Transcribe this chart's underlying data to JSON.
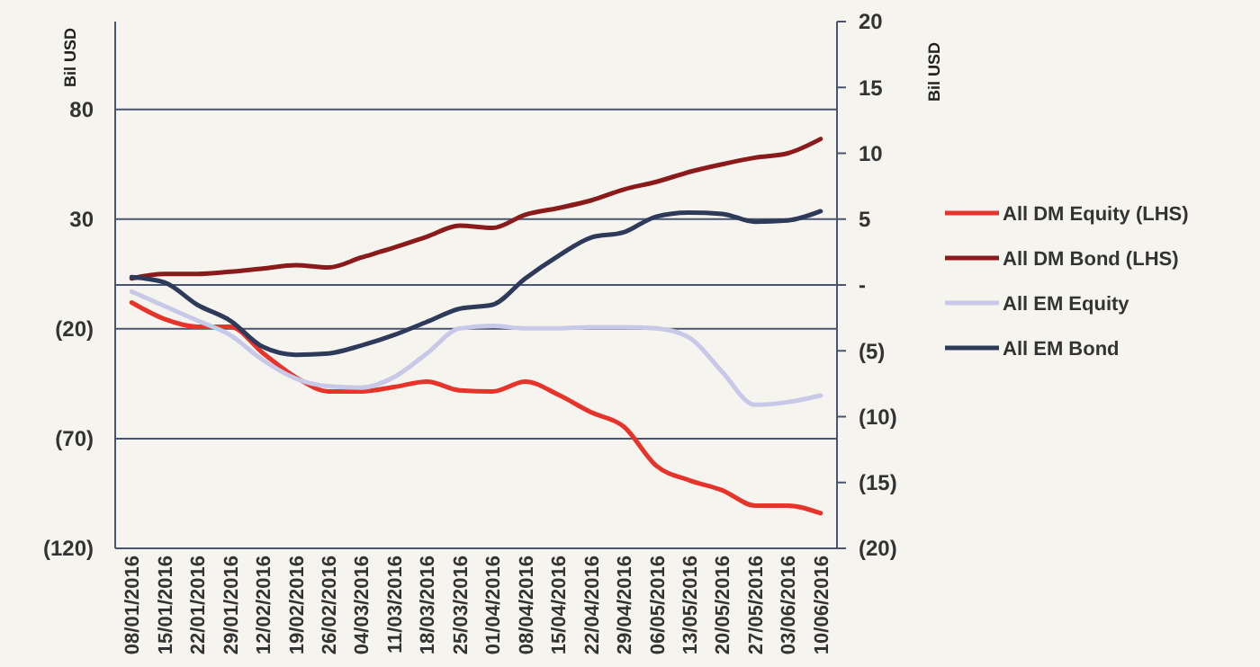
{
  "chart_data": {
    "type": "line",
    "ylabel": "Bil USD",
    "y2label": "Bil USD",
    "categories": [
      "08/01/2016",
      "15/01/2016",
      "22/01/2016",
      "29/01/2016",
      "12/02/2016",
      "19/02/2016",
      "26/02/2016",
      "04/03/2016",
      "11/03/2016",
      "18/03/2016",
      "25/03/2016",
      "01/04/2016",
      "08/04/2016",
      "15/04/2016",
      "22/04/2016",
      "29/04/2016",
      "06/05/2016",
      "13/05/2016",
      "20/05/2016",
      "27/05/2016",
      "03/06/2016",
      "10/06/2016"
    ],
    "series": [
      {
        "name": "All DM Equity (LHS)",
        "color": "#e8332a",
        "values": [
          -8,
          -15.5,
          -19,
          -19,
          -31,
          -42,
          -48.5,
          -48.5,
          -46.5,
          -44,
          -48,
          -48.5,
          -44,
          -50,
          -58,
          -64.5,
          -82.5,
          -89,
          -93.5,
          -100.5,
          -100.5,
          -104
        ]
      },
      {
        "name": "All DM Bond (LHS)",
        "color": "#8b1a1a",
        "values": [
          3,
          5,
          5,
          6,
          7.5,
          9,
          8,
          12.5,
          17,
          22,
          27,
          26,
          32,
          35,
          38.5,
          43.5,
          47,
          51.5,
          55,
          58,
          60,
          66.5
        ]
      },
      {
        "name": "All EM Equity",
        "color": "#c8c8e8",
        "axis": "y2",
        "values": [
          -0.5,
          -1.6,
          -2.7,
          -3.8,
          -5.7,
          -7.1,
          -7.7,
          -7.8,
          -7,
          -5.2,
          -3.3,
          -3.1,
          -3.3,
          -3.3,
          -3.2,
          -3.2,
          -3.3,
          -4,
          -6.6,
          -9.1,
          -8.9,
          -8.4
        ]
      },
      {
        "name": "All EM Bond",
        "color": "#2e3a5a",
        "axis": "y2",
        "values": [
          0.6,
          0.2,
          -1.5,
          -2.7,
          -4.7,
          -5.3,
          -5.2,
          -4.6,
          -3.8,
          -2.8,
          -1.8,
          -1.5,
          0.5,
          2.2,
          3.6,
          4,
          5.2,
          5.5,
          5.4,
          4.8,
          4.9,
          5.6
        ]
      }
    ],
    "ylim": [
      -120,
      120
    ],
    "yticks": [
      {
        "value": -120,
        "label": "(120)"
      },
      {
        "value": -70,
        "label": "(70)"
      },
      {
        "value": -20,
        "label": "(20)"
      },
      30,
      80
    ],
    "y2lim": [
      -20,
      20
    ],
    "y2ticks": [
      {
        "value": -20,
        "label": "(20)"
      },
      {
        "value": -15,
        "label": "(15)"
      },
      {
        "value": -10,
        "label": "(10)"
      },
      {
        "value": -5,
        "label": "(5)"
      },
      {
        "value": 0,
        "label": "-"
      },
      5,
      10,
      15,
      20
    ],
    "grid": "y",
    "legend": "right",
    "marker": "none",
    "line_style": "solid"
  }
}
